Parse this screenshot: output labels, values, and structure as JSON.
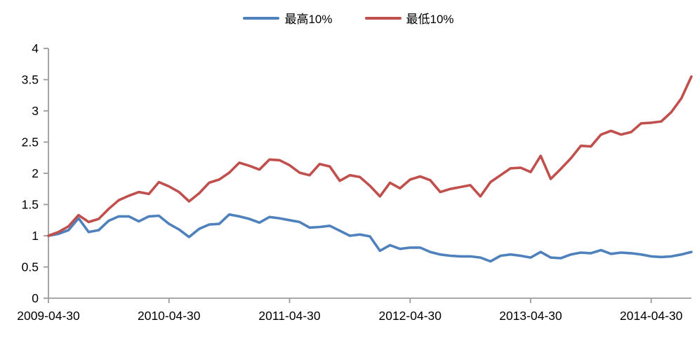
{
  "chart_data": {
    "type": "line",
    "title": "",
    "xlabel": "",
    "ylabel": "",
    "ylim": [
      0,
      4
    ],
    "y_ticks": [
      0,
      0.5,
      1,
      1.5,
      2,
      2.5,
      3,
      3.5,
      4
    ],
    "y_tick_labels": [
      "0",
      "0.5",
      "1",
      "1.5",
      "2",
      "2.5",
      "3",
      "3.5",
      "4"
    ],
    "x_tick_labels": [
      "2009-04-30",
      "2010-04-30",
      "2011-04-30",
      "2012-04-30",
      "2013-04-30",
      "2014-04-30"
    ],
    "x_tick_indices": [
      0,
      12,
      24,
      36,
      48,
      60
    ],
    "grid": false,
    "legend_position": "top-center",
    "axis_color": "#9B9B9B",
    "text_color": "#000000",
    "categories": [
      "2009-04",
      "2009-05",
      "2009-06",
      "2009-07",
      "2009-08",
      "2009-09",
      "2009-10",
      "2009-11",
      "2009-12",
      "2010-01",
      "2010-02",
      "2010-03",
      "2010-04",
      "2010-05",
      "2010-06",
      "2010-07",
      "2010-08",
      "2010-09",
      "2010-10",
      "2010-11",
      "2010-12",
      "2011-01",
      "2011-02",
      "2011-03",
      "2011-04",
      "2011-05",
      "2011-06",
      "2011-07",
      "2011-08",
      "2011-09",
      "2011-10",
      "2011-11",
      "2011-12",
      "2012-01",
      "2012-02",
      "2012-03",
      "2012-04",
      "2012-05",
      "2012-06",
      "2012-07",
      "2012-08",
      "2012-09",
      "2012-10",
      "2012-11",
      "2012-12",
      "2013-01",
      "2013-02",
      "2013-03",
      "2013-04",
      "2013-05",
      "2013-06",
      "2013-07",
      "2013-08",
      "2013-09",
      "2013-10",
      "2013-11",
      "2013-12",
      "2014-01",
      "2014-02",
      "2014-03",
      "2014-04",
      "2014-05",
      "2014-06",
      "2014-07",
      "2014-08"
    ],
    "series": [
      {
        "name": "最高10%",
        "color": "#4F81BD",
        "values": [
          1.0,
          1.03,
          1.09,
          1.28,
          1.06,
          1.09,
          1.24,
          1.31,
          1.31,
          1.23,
          1.31,
          1.32,
          1.19,
          1.1,
          0.98,
          1.11,
          1.18,
          1.19,
          1.34,
          1.31,
          1.27,
          1.21,
          1.3,
          1.28,
          1.25,
          1.22,
          1.13,
          1.14,
          1.16,
          1.08,
          1.0,
          1.02,
          0.99,
          0.76,
          0.85,
          0.79,
          0.81,
          0.81,
          0.74,
          0.7,
          0.68,
          0.67,
          0.67,
          0.65,
          0.59,
          0.68,
          0.7,
          0.68,
          0.65,
          0.74,
          0.65,
          0.64,
          0.7,
          0.73,
          0.72,
          0.77,
          0.71,
          0.73,
          0.72,
          0.7,
          0.67,
          0.66,
          0.67,
          0.7,
          0.74
        ]
      },
      {
        "name": "最低10%",
        "color": "#C0504D",
        "values": [
          1.0,
          1.06,
          1.15,
          1.33,
          1.22,
          1.27,
          1.43,
          1.57,
          1.64,
          1.7,
          1.67,
          1.86,
          1.79,
          1.7,
          1.55,
          1.68,
          1.85,
          1.9,
          2.01,
          2.17,
          2.12,
          2.06,
          2.22,
          2.21,
          2.13,
          2.01,
          1.97,
          2.15,
          2.11,
          1.88,
          1.97,
          1.94,
          1.8,
          1.63,
          1.85,
          1.76,
          1.9,
          1.95,
          1.89,
          1.7,
          1.75,
          1.78,
          1.81,
          1.63,
          1.86,
          1.97,
          2.08,
          2.09,
          2.02,
          2.28,
          1.91,
          2.07,
          2.24,
          2.44,
          2.43,
          2.62,
          2.68,
          2.62,
          2.66,
          2.8,
          2.81,
          2.83,
          2.98,
          3.2,
          3.55
        ]
      }
    ]
  }
}
